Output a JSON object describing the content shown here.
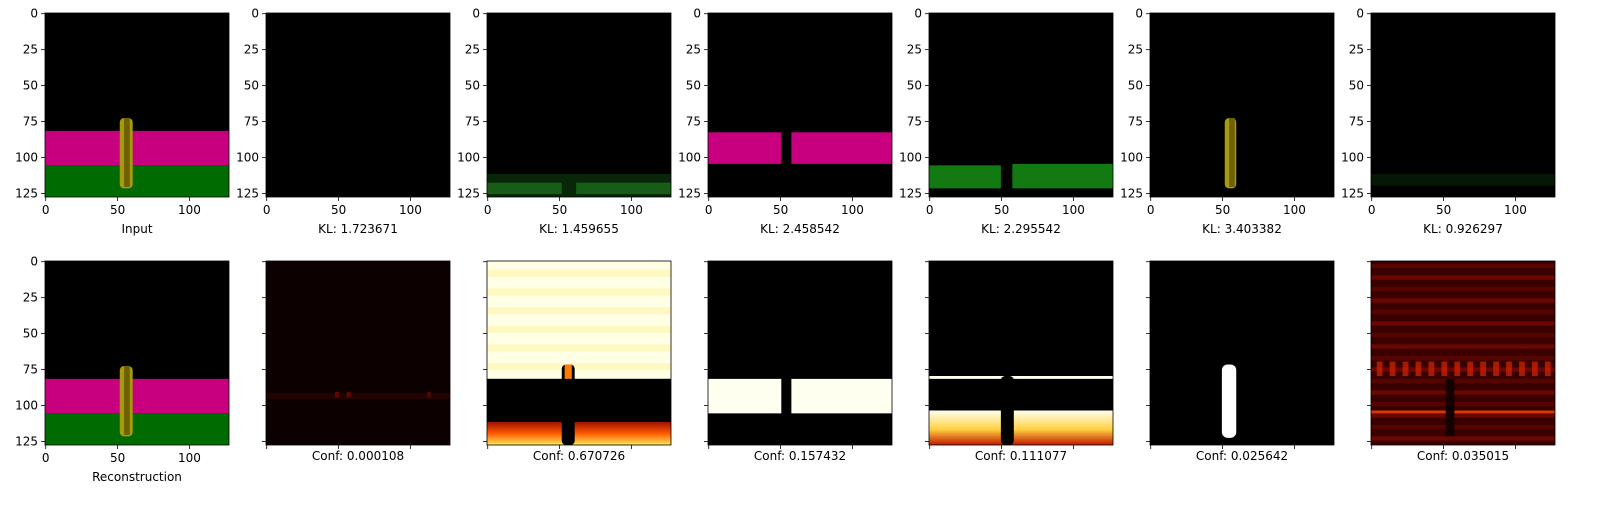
{
  "chart_data": {
    "type": "image-grid",
    "image_size": 128,
    "axis": {
      "ticks": [
        0,
        50,
        100
      ],
      "y_ticks": [
        0,
        25,
        50,
        75,
        100,
        125
      ]
    },
    "top_row": [
      {
        "caption": "Input",
        "image": "scene",
        "series": "input"
      },
      {
        "caption": "KL: 1.723671",
        "kl": 1.723671,
        "image": "blank"
      },
      {
        "caption": "KL: 1.459655",
        "kl": 1.459655,
        "image": "floor-faint"
      },
      {
        "caption": "KL: 2.458542",
        "kl": 2.458542,
        "image": "wall-magenta"
      },
      {
        "caption": "KL: 2.295542",
        "kl": 2.295542,
        "image": "floor-green"
      },
      {
        "caption": "KL: 3.403382",
        "kl": 3.403382,
        "image": "object-yellow"
      },
      {
        "caption": "KL: 0.926297",
        "kl": 0.926297,
        "image": "blank-faint"
      }
    ],
    "bottom_row": [
      {
        "caption": "Reconstruction",
        "image": "scene"
      },
      {
        "caption": "Conf: 0.000108",
        "conf": 0.000108,
        "image": "mask-empty"
      },
      {
        "caption": "Conf: 0.670726",
        "conf": 0.670726,
        "image": "mask-background"
      },
      {
        "caption": "Conf: 0.157432",
        "conf": 0.157432,
        "image": "mask-wall"
      },
      {
        "caption": "Conf: 0.111077",
        "conf": 0.111077,
        "image": "mask-floor"
      },
      {
        "caption": "Conf: 0.025642",
        "conf": 0.025642,
        "image": "mask-object"
      },
      {
        "caption": "Conf: 0.035015",
        "conf": 0.035015,
        "image": "mask-noise"
      }
    ],
    "colors": {
      "wall": "#c8007f",
      "floor": "#006b00",
      "object": "#a89a10",
      "background": "#000000",
      "mask_low": "#0d0000",
      "mask_high": "#ffffff"
    }
  }
}
